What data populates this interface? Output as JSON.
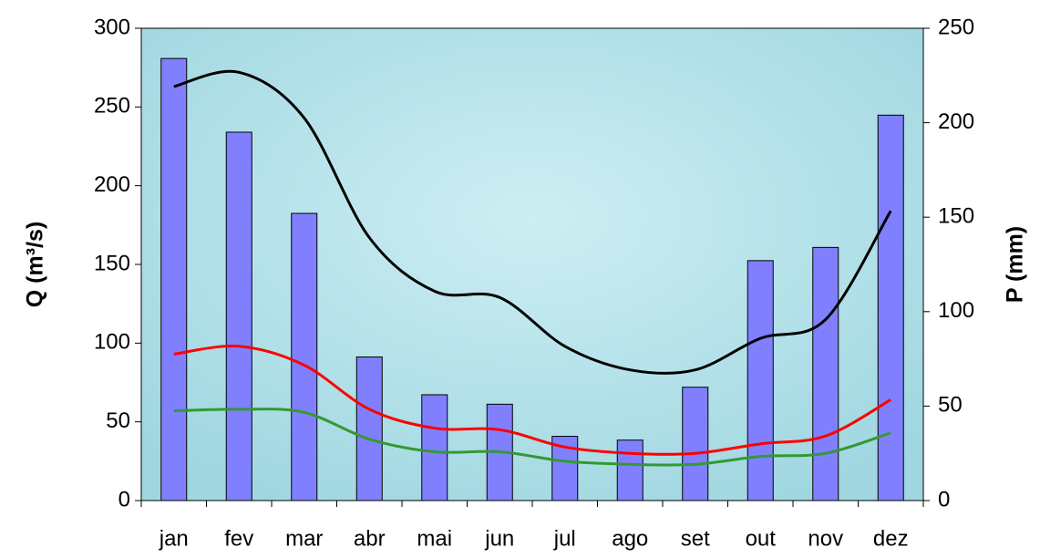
{
  "chart_data": {
    "type": "bar-line",
    "y_label": "Q (m³/s)",
    "y2_label": "P (mm)",
    "categories": [
      "jan",
      "fev",
      "mar",
      "abr",
      "mai",
      "jun",
      "jul",
      "ago",
      "set",
      "out",
      "nov",
      "dez"
    ],
    "ylim": [
      0,
      300
    ],
    "yticks": [
      0,
      50,
      100,
      150,
      200,
      250,
      300
    ],
    "y2lim": [
      0,
      250
    ],
    "y2ticks": [
      0,
      50,
      100,
      150,
      200,
      250
    ],
    "series": [
      {
        "type": "bar",
        "axis": "y2",
        "color": "#8080ff",
        "values": [
          234,
          195,
          152,
          76,
          56,
          51,
          34,
          32,
          60,
          127,
          134,
          204
        ]
      },
      {
        "type": "line",
        "color": "#000000",
        "values": [
          263,
          272,
          243,
          167,
          133,
          129,
          98,
          83,
          83,
          103,
          115,
          184
        ]
      },
      {
        "type": "line",
        "color": "#ff0000",
        "values": [
          93,
          98,
          86,
          58,
          46,
          45,
          34,
          30,
          30,
          36,
          41,
          64
        ]
      },
      {
        "type": "line",
        "color": "#339933",
        "values": [
          57,
          58,
          56,
          39,
          31,
          31,
          25,
          23,
          23,
          28,
          30,
          43
        ]
      }
    ]
  }
}
